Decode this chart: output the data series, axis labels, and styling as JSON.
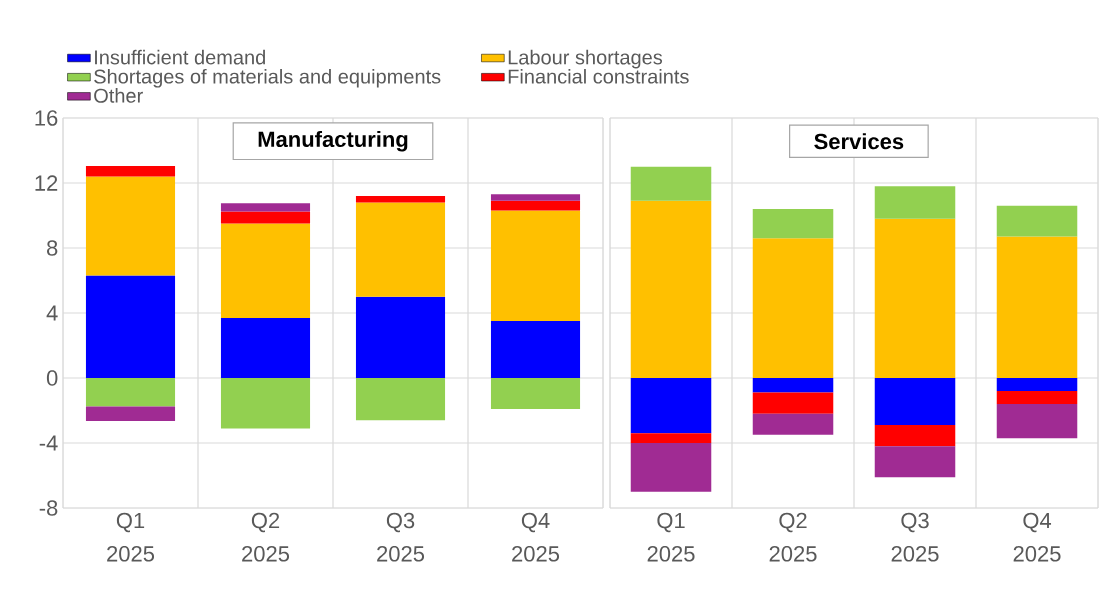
{
  "chart_data": [
    {
      "type": "bar",
      "stacked": true,
      "title": "Manufacturing",
      "categories": [
        "Q1 2025",
        "Q2 2025",
        "Q3 2025",
        "Q4 2025"
      ],
      "ylim": [
        -8,
        16
      ],
      "yticks": [
        -8,
        -4,
        0,
        4,
        8,
        12,
        16
      ],
      "grid": true,
      "legend": "top",
      "series": [
        {
          "name": "Insufficient demand",
          "color": "#0000ff",
          "values": [
            6.3,
            3.7,
            5.0,
            3.5
          ]
        },
        {
          "name": "Labour shortages",
          "color": "#ffc000",
          "values": [
            6.1,
            5.8,
            5.8,
            6.8
          ]
        },
        {
          "name": "Shortages of materials and equipments",
          "color": "#92d050",
          "values": [
            -1.75,
            -3.1,
            -2.6,
            -1.9
          ]
        },
        {
          "name": "Financial constraints",
          "color": "#ff0000",
          "values": [
            0.65,
            0.75,
            0.4,
            0.6
          ]
        },
        {
          "name": "Other",
          "color": "#a02b93",
          "values": [
            -0.9,
            0.5,
            null,
            0.4
          ]
        }
      ]
    },
    {
      "type": "bar",
      "stacked": true,
      "title": "Services",
      "categories": [
        "Q1 2025",
        "Q2 2025",
        "Q3 2025",
        "Q4 2025"
      ],
      "ylim": [
        -8,
        16
      ],
      "yticks": [
        -8,
        -4,
        0,
        4,
        8,
        12,
        16
      ],
      "grid": true,
      "tick_labels": "x",
      "series": [
        {
          "color": "#0000ff",
          "values": [
            -3.4,
            -0.9,
            -2.9,
            -0.8
          ]
        },
        {
          "color": "#ffc000",
          "values": [
            10.9,
            8.6,
            9.8,
            8.7
          ]
        },
        {
          "color": "#92d050",
          "values": [
            2.1,
            1.8,
            2.0,
            1.9
          ]
        },
        {
          "color": "#ff0000",
          "values": [
            -0.6,
            -1.3,
            -1.3,
            -0.8
          ]
        },
        {
          "color": "#a02b93",
          "values": [
            -3.0,
            -1.3,
            -1.9,
            -2.1
          ]
        }
      ]
    }
  ]
}
